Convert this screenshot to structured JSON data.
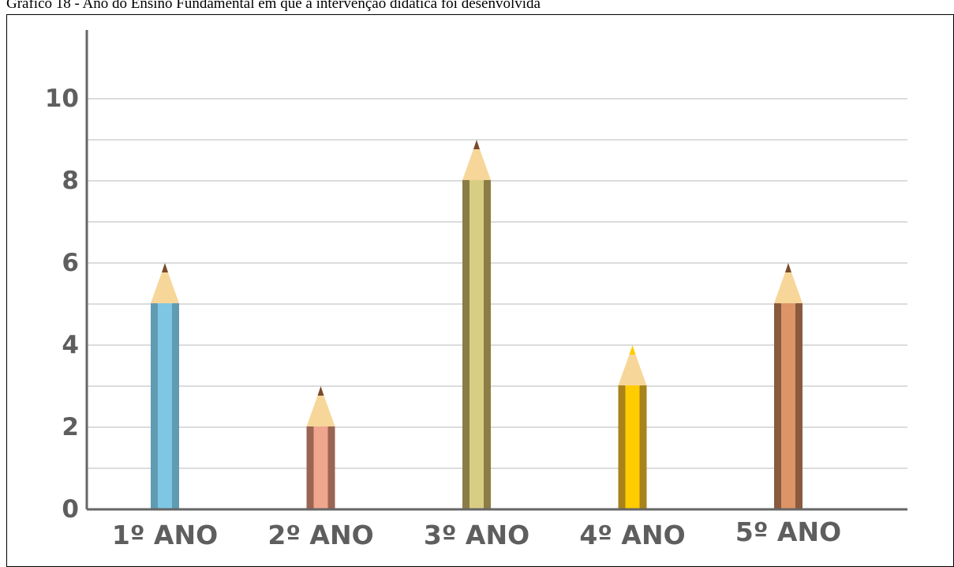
{
  "caption": "Gráfico 18 - Ano do Ensino Fundamental em que a intervenção didática foi desenvolvida",
  "chart_data": {
    "type": "bar",
    "title": "",
    "xlabel": "",
    "ylabel": "",
    "ylim": [
      0,
      11
    ],
    "yticks": [
      "0",
      "2",
      "4",
      "6",
      "8",
      "10"
    ],
    "grid": true,
    "categories": [
      "1º ANO",
      "2º ANO",
      "3º ANO",
      "4º ANO",
      "5º ANO"
    ],
    "values": [
      6,
      3,
      9,
      4,
      6
    ],
    "bar_style": "pencil",
    "colors": [
      {
        "body": "#7ec6e3",
        "edge": "#5f9cb2",
        "tip": "#7a4a2a"
      },
      {
        "body": "#f0a58d",
        "edge": "#9b6553",
        "tip": "#7a4a2a"
      },
      {
        "body": "#d8cd82",
        "edge": "#8a7d46",
        "tip": "#7a4a2a"
      },
      {
        "body": "#ffcc00",
        "edge": "#a8831c",
        "tip": "#ffcc00"
      },
      {
        "body": "#dd9466",
        "edge": "#8a5a3e",
        "tip": "#7a4a2a"
      }
    ],
    "wood_color": "#f7d69a",
    "grid_color": "#dcdcdc",
    "axis_color": "#666666"
  }
}
